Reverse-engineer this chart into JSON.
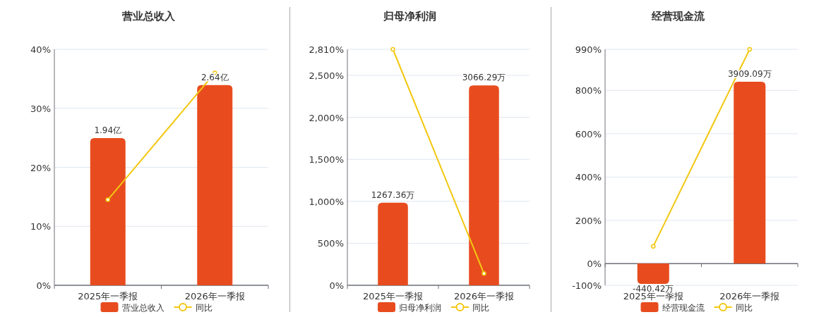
{
  "chart_data": [
    {
      "type": "bar",
      "title": "营业总收入",
      "categories": [
        "2025年一季报",
        "2026年一季报"
      ],
      "series": [
        {
          "name": "营业总收入",
          "type": "bar",
          "axis": "y2",
          "color": "#e84c1e",
          "values": [
            1.94,
            2.64
          ],
          "value_labels": [
            "1.94亿",
            "2.64亿"
          ]
        },
        {
          "name": "同比",
          "type": "line",
          "color": "#f2c811",
          "values": [
            14.5,
            36.0
          ],
          "marker": "circle"
        }
      ],
      "ylim": [
        0,
        40
      ],
      "yticks": [
        {
          "value": 0,
          "label": "0%"
        },
        {
          "value": 10,
          "label": "10%"
        },
        {
          "value": 20,
          "label": "20%"
        },
        {
          "value": 30,
          "label": "30%"
        },
        {
          "value": 40,
          "label": "40%"
        }
      ],
      "y2lim": [
        0,
        3.11
      ],
      "grid": "y",
      "legend": "bottom"
    },
    {
      "type": "bar",
      "title": "归母净利润",
      "categories": [
        "2025年一季报",
        "2026年一季报"
      ],
      "series": [
        {
          "name": "归母净利润",
          "type": "bar",
          "axis": "y2",
          "color": "#e84c1e",
          "values": [
            1267.36,
            3066.29
          ],
          "value_labels": [
            "1267.36万",
            "3066.29万"
          ]
        },
        {
          "name": "同比",
          "type": "line",
          "color": "#f2c811",
          "values": [
            2810,
            140
          ],
          "marker": "circle"
        }
      ],
      "ylim": [
        0,
        2810
      ],
      "yticks": [
        {
          "value": 0,
          "label": "0%"
        },
        {
          "value": 500,
          "label": "500%"
        },
        {
          "value": 1000,
          "label": "1,000%"
        },
        {
          "value": 1500,
          "label": "1,500%"
        },
        {
          "value": 2000,
          "label": "2,000%"
        },
        {
          "value": 2500,
          "label": "2,500%"
        },
        {
          "value": 2810,
          "label": "2,810%"
        }
      ],
      "y2lim": [
        0,
        3620
      ],
      "grid": "y",
      "legend": "bottom"
    },
    {
      "type": "bar",
      "title": "经营现金流",
      "categories": [
        "2025年一季报",
        "2026年一季报"
      ],
      "series": [
        {
          "name": "经营现金流",
          "type": "bar",
          "axis": "y2",
          "color": "#e84c1e",
          "values": [
            -440.42,
            3909.09
          ],
          "value_labels": [
            "-440.42万",
            "3909.09万"
          ]
        },
        {
          "name": "同比",
          "type": "line",
          "color": "#f2c811",
          "values": [
            80,
            990
          ],
          "marker": "circle"
        }
      ],
      "ylim": [
        -100,
        990
      ],
      "yticks": [
        {
          "value": -100,
          "label": "-100%"
        },
        {
          "value": 0,
          "label": "0%"
        },
        {
          "value": 200,
          "label": "200%"
        },
        {
          "value": 400,
          "label": "400%"
        },
        {
          "value": 600,
          "label": "600%"
        },
        {
          "value": 800,
          "label": "800%"
        },
        {
          "value": 990,
          "label": "990%"
        }
      ],
      "y2lim": [
        -470,
        4606
      ],
      "grid": "y",
      "legend": "bottom"
    }
  ]
}
